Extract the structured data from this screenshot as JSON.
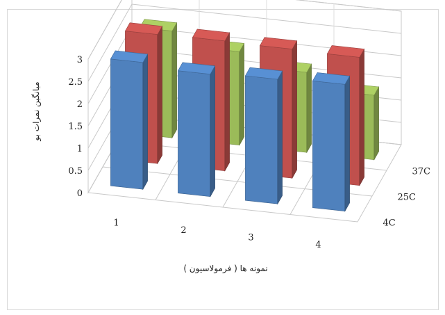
{
  "chart_data": {
    "type": "bar",
    "subtype": "3d-clustered-column",
    "categories": [
      "1",
      "2",
      "3",
      "4"
    ],
    "depth_categories": [
      "4C",
      "25C",
      "37C"
    ],
    "series": [
      {
        "name": "4C",
        "values": [
          2.85,
          2.75,
          2.8,
          2.85
        ],
        "color": "#4f81bd"
      },
      {
        "name": "25C",
        "values": [
          2.9,
          2.92,
          2.9,
          2.88
        ],
        "color": "#c0504d"
      },
      {
        "name": "37C",
        "values": [
          2.4,
          2.1,
          1.8,
          1.45
        ],
        "color": "#9bbb59"
      }
    ],
    "ylim": [
      0,
      3
    ],
    "yticks": [
      "0",
      "0.5",
      "1",
      "1.5",
      "2",
      "2.5",
      "3"
    ],
    "xlabel": "نمونه ها ( فرمولاسیون )",
    "ylabel": "میانگین نمرات بو",
    "grid": true,
    "legend": "none"
  }
}
